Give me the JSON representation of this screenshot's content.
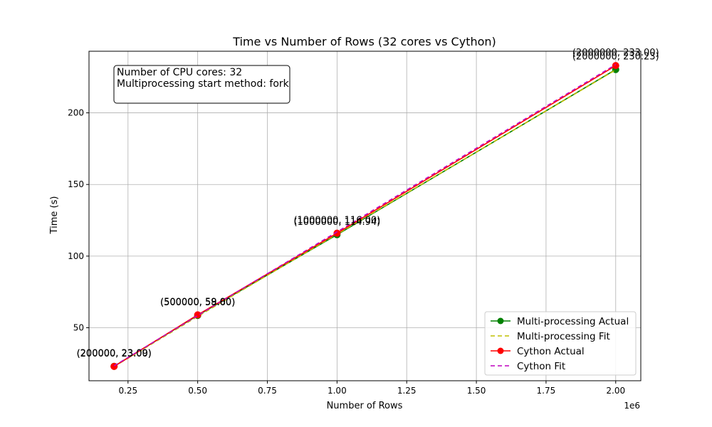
{
  "chart_data": {
    "type": "line",
    "title": "Time vs Number of Rows (32 cores vs Cython)",
    "xlabel": "Number of Rows",
    "ylabel": "Time (s)",
    "x_offset_label": "1e6",
    "xlim": [
      110000,
      2090000
    ],
    "ylim": [
      13,
      243
    ],
    "x_ticks": [
      0.25,
      0.5,
      0.75,
      1.0,
      1.25,
      1.5,
      1.75,
      2.0
    ],
    "x_tick_labels": [
      "0.25",
      "0.50",
      "0.75",
      "1.00",
      "1.25",
      "1.50",
      "1.75",
      "2.00"
    ],
    "y_ticks": [
      50,
      100,
      150,
      200
    ],
    "y_tick_labels": [
      "50",
      "100",
      "150",
      "200"
    ],
    "grid": true,
    "legend_position": "lower-right",
    "x": [
      200000,
      500000,
      1000000,
      2000000
    ],
    "series": [
      {
        "name": "Multi-processing Actual",
        "values": [
          23.09,
          58.6,
          114.94,
          230.23
        ],
        "color": "#008000",
        "style": "solid-marker",
        "annotations": [
          "(200000, 23.09)",
          "(500000, 58.60)",
          "(1000000, 114.94)",
          "(2000000, 230.23)"
        ]
      },
      {
        "name": "Multi-processing Fit",
        "values": [
          22.9,
          57.9,
          115.3,
          230.0
        ],
        "color": "#bfbf00",
        "style": "dashed"
      },
      {
        "name": "Cython Actual",
        "values": [
          23.0,
          59.0,
          116.0,
          233.0
        ],
        "color": "#ff0000",
        "style": "solid-marker",
        "annotations": [
          "(200000, 23.00)",
          "(500000, 59.00)",
          "(1000000, 116.00)",
          "(2000000, 233.00)"
        ]
      },
      {
        "name": "Cython Fit",
        "values": [
          23.4,
          58.5,
          116.9,
          233.7
        ],
        "color": "#bf00bf",
        "style": "dashed"
      }
    ],
    "info_box": [
      "Number of CPU cores: 32",
      "Multiprocessing start method: fork"
    ]
  }
}
